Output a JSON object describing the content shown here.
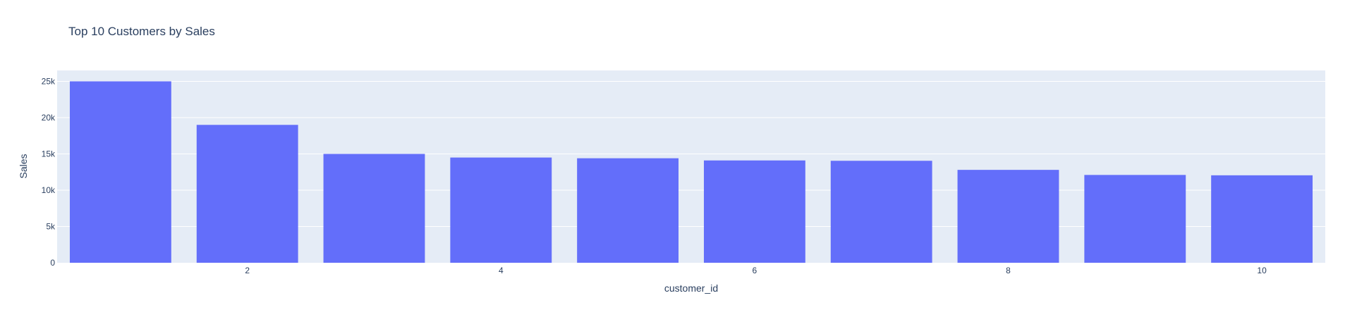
{
  "chart_data": {
    "type": "bar",
    "title": "Top 10 Customers by Sales",
    "xlabel": "customer_id",
    "ylabel": "Sales",
    "categories": [
      1,
      2,
      3,
      4,
      5,
      6,
      7,
      8,
      9,
      10
    ],
    "values": [
      25000,
      19000,
      15000,
      14500,
      14400,
      14100,
      14050,
      12800,
      12100,
      12050
    ],
    "ylim": [
      0,
      26500
    ],
    "yticks": [
      0,
      5000,
      10000,
      15000,
      20000,
      25000
    ],
    "yticklabels": [
      "0",
      "5k",
      "10k",
      "15k",
      "20k",
      "25k"
    ],
    "xticks": [
      2,
      4,
      6,
      8,
      10
    ],
    "xticklabels": [
      "2",
      "4",
      "6",
      "8",
      "10"
    ],
    "grid": true,
    "colors": {
      "bar": "#636efa",
      "plot_bg": "#e5ecf6",
      "grid": "#ffffff",
      "text": "#2a3f5f"
    }
  }
}
